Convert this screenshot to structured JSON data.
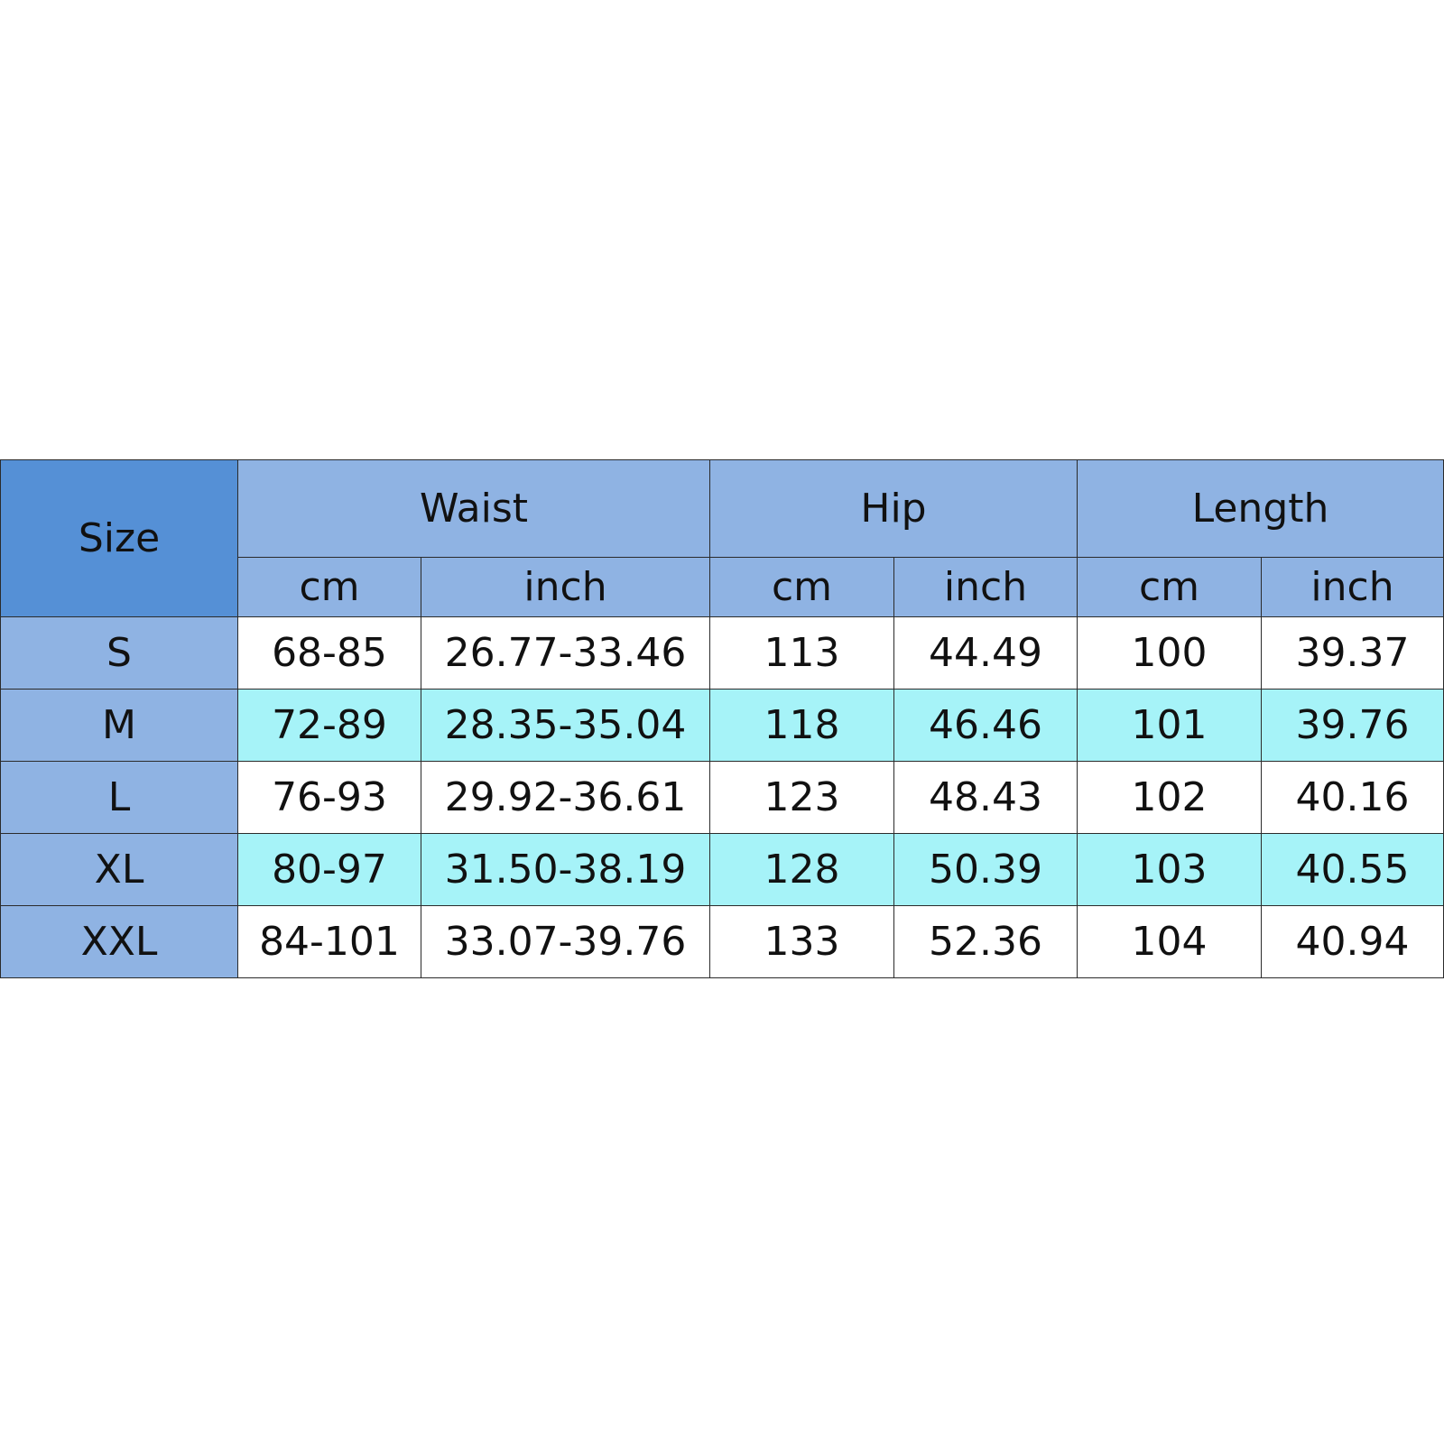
{
  "colors": {
    "size_header_bg": "#5590d6",
    "header_bg": "#8fb3e3",
    "size_column_bg": "#8fb3e3",
    "row_white": "#ffffff",
    "row_cyan": "#a6f3f8",
    "border": "#2b2b2b",
    "text": "#111111"
  },
  "table": {
    "size_label": "Size",
    "groups": [
      {
        "name": "Waist",
        "units": [
          "cm",
          "inch"
        ]
      },
      {
        "name": "Hip",
        "units": [
          "cm",
          "inch"
        ]
      },
      {
        "name": "Length",
        "units": [
          "cm",
          "inch"
        ]
      }
    ],
    "rows": [
      {
        "size": "S",
        "values": [
          "68-85",
          "26.77-33.46",
          "113",
          "44.49",
          "100",
          "39.37"
        ]
      },
      {
        "size": "M",
        "values": [
          "72-89",
          "28.35-35.04",
          "118",
          "46.46",
          "101",
          "39.76"
        ]
      },
      {
        "size": "L",
        "values": [
          "76-93",
          "29.92-36.61",
          "123",
          "48.43",
          "102",
          "40.16"
        ]
      },
      {
        "size": "XL",
        "values": [
          "80-97",
          "31.50-38.19",
          "128",
          "50.39",
          "103",
          "40.55"
        ]
      },
      {
        "size": "XXL",
        "values": [
          "84-101",
          "33.07-39.76",
          "133",
          "52.36",
          "104",
          "40.94"
        ]
      }
    ]
  }
}
